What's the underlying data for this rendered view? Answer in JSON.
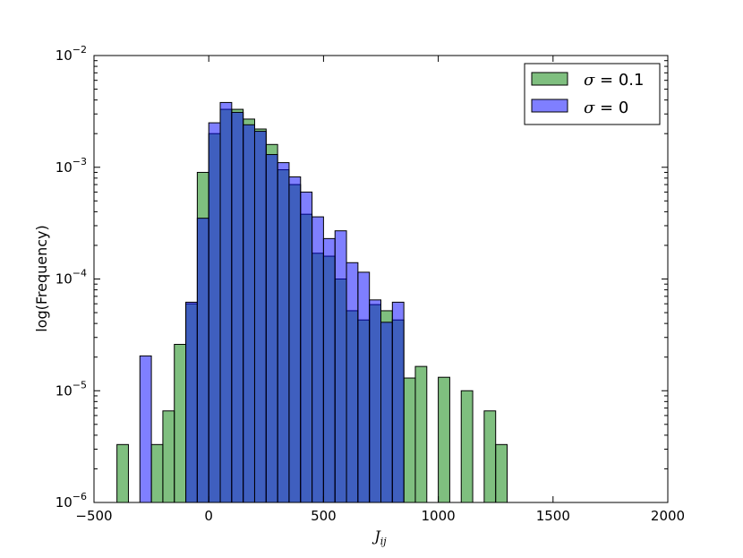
{
  "chart_data": {
    "type": "bar",
    "xlabel": "J",
    "xlabel_sub": "ij",
    "ylabel": "log(Frequency)",
    "xlim": [
      -500,
      2000
    ],
    "ylim": [
      1e-06,
      0.01
    ],
    "yscale": "log",
    "xticks": [
      -500,
      0,
      500,
      1000,
      1500,
      2000
    ],
    "yticks": [
      {
        "value": 0.01,
        "base": "10",
        "exp": "-2"
      },
      {
        "value": 0.001,
        "base": "10",
        "exp": "-3"
      },
      {
        "value": 0.0001,
        "base": "10",
        "exp": "-4"
      },
      {
        "value": 1e-05,
        "base": "10",
        "exp": "-5"
      },
      {
        "value": 1e-06,
        "base": "10",
        "exp": "-6"
      }
    ],
    "bin_width": 50,
    "legend": {
      "position": "top-right"
    },
    "series": [
      {
        "name": "σ = 0.1",
        "name_symbol": "σ",
        "name_value": " = 0.1",
        "color": "#008000",
        "opacity": 0.5,
        "bins": [
          {
            "x0": -400,
            "value": 3.3e-06
          },
          {
            "x0": -250,
            "value": 3.3e-06
          },
          {
            "x0": -200,
            "value": 6.6e-06
          },
          {
            "x0": -150,
            "value": 2.6e-05
          },
          {
            "x0": -100,
            "value": 6e-05
          },
          {
            "x0": -50,
            "value": 0.0009
          },
          {
            "x0": 0,
            "value": 0.002
          },
          {
            "x0": 50,
            "value": 0.0033
          },
          {
            "x0": 100,
            "value": 0.0033
          },
          {
            "x0": 150,
            "value": 0.0027
          },
          {
            "x0": 200,
            "value": 0.0022
          },
          {
            "x0": 250,
            "value": 0.0016
          },
          {
            "x0": 300,
            "value": 0.00095
          },
          {
            "x0": 350,
            "value": 0.0007
          },
          {
            "x0": 400,
            "value": 0.00038
          },
          {
            "x0": 450,
            "value": 0.00017
          },
          {
            "x0": 500,
            "value": 0.00016
          },
          {
            "x0": 550,
            "value": 0.0001
          },
          {
            "x0": 600,
            "value": 5.2e-05
          },
          {
            "x0": 650,
            "value": 4.3e-05
          },
          {
            "x0": 700,
            "value": 5.9e-05
          },
          {
            "x0": 750,
            "value": 5.2e-05
          },
          {
            "x0": 800,
            "value": 4.3e-05
          },
          {
            "x0": 850,
            "value": 1.3e-05
          },
          {
            "x0": 900,
            "value": 1.65e-05
          },
          {
            "x0": 1000,
            "value": 1.32e-05
          },
          {
            "x0": 1100,
            "value": 1e-05
          },
          {
            "x0": 1200,
            "value": 6.6e-06
          },
          {
            "x0": 1250,
            "value": 3.3e-06
          }
        ]
      },
      {
        "name": "σ = 0",
        "name_symbol": "σ",
        "name_value": " = 0",
        "color": "#0000ff",
        "opacity": 0.5,
        "bins": [
          {
            "x0": -300,
            "value": 2.05e-05
          },
          {
            "x0": -100,
            "value": 6.2e-05
          },
          {
            "x0": -50,
            "value": 0.00035
          },
          {
            "x0": 0,
            "value": 0.0025
          },
          {
            "x0": 50,
            "value": 0.0038
          },
          {
            "x0": 100,
            "value": 0.0031
          },
          {
            "x0": 150,
            "value": 0.0024
          },
          {
            "x0": 200,
            "value": 0.0021
          },
          {
            "x0": 250,
            "value": 0.0013
          },
          {
            "x0": 300,
            "value": 0.0011
          },
          {
            "x0": 350,
            "value": 0.00082
          },
          {
            "x0": 400,
            "value": 0.0006
          },
          {
            "x0": 450,
            "value": 0.00036
          },
          {
            "x0": 500,
            "value": 0.00023
          },
          {
            "x0": 550,
            "value": 0.00027
          },
          {
            "x0": 600,
            "value": 0.00014
          },
          {
            "x0": 650,
            "value": 0.000115
          },
          {
            "x0": 700,
            "value": 6.5e-05
          },
          {
            "x0": 750,
            "value": 4.1e-05
          },
          {
            "x0": 800,
            "value": 6.2e-05
          }
        ]
      }
    ]
  }
}
